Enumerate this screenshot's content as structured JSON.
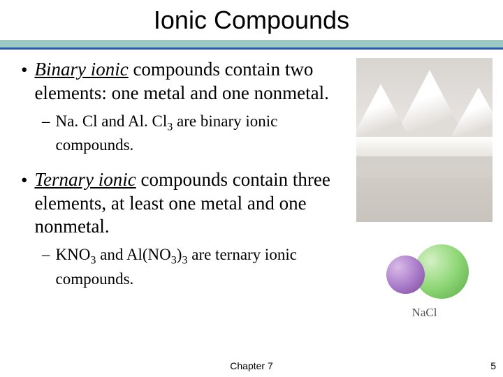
{
  "title": "Ionic Compounds",
  "bullets": [
    {
      "term": "Binary ionic",
      "rest": " compounds contain two elements: one metal and one nonmetal.",
      "sub_html": "Na. Cl and Al. Cl<sub>3</sub> are binary ionic compounds."
    },
    {
      "term": "Ternary ionic",
      "rest": " compounds contain three elements, at least one metal and one nonmetal.",
      "sub_html": "KNO<sub>3</sub> and Al(NO<sub>3</sub>)<sub>3</sub> are ternary ionic compounds."
    }
  ],
  "model_label": "NaCl",
  "footer": {
    "chapter": "Chapter 7",
    "page": "5"
  },
  "colors": {
    "teal_band": "#9cc9c5",
    "blue_line": "#2a5aa8",
    "na_sphere": "#a878c8",
    "cl_sphere": "#90d878"
  }
}
